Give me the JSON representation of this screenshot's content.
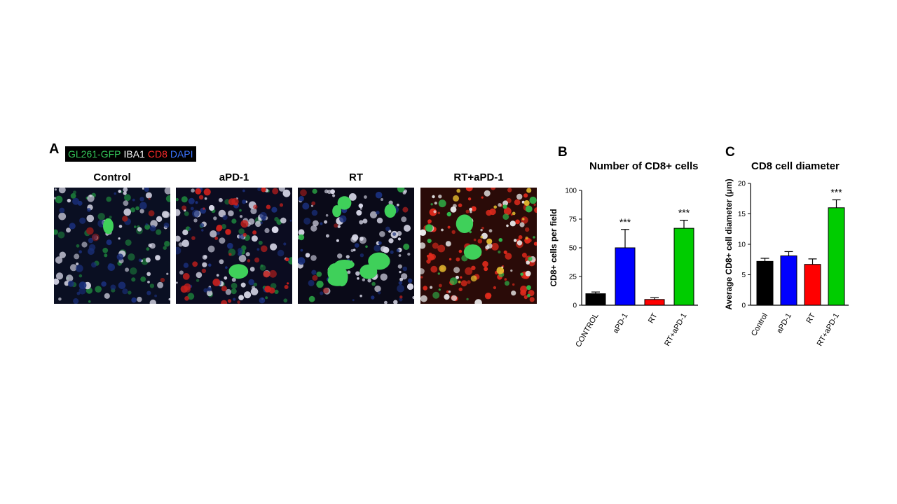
{
  "panel_a": {
    "letter": "A",
    "legend": [
      {
        "text": "GL261-GFP",
        "color": "#34c659"
      },
      {
        "text": "IBA1",
        "color": "#ffffff"
      },
      {
        "text": "CD8",
        "color": "#ff2a2a"
      },
      {
        "text": "DAPI",
        "color": "#3b74ff"
      }
    ],
    "images": [
      {
        "title": "Control"
      },
      {
        "title": "aPD-1"
      },
      {
        "title": "RT"
      },
      {
        "title": "RT+aPD-1"
      }
    ]
  },
  "chart_data": [
    {
      "panel": "B",
      "type": "bar",
      "title": "Number of CD8+ cells",
      "ylabel": "CD8+ cells per field",
      "xlabel": "",
      "categories": [
        "CONTROL",
        "aPD-1",
        "RT",
        "RT+aPD-1"
      ],
      "values": [
        10,
        50,
        5,
        67
      ],
      "errors": [
        1.5,
        16,
        1.5,
        7
      ],
      "colors": [
        "#000000",
        "#0000ff",
        "#ff0000",
        "#00cc00"
      ],
      "significance": [
        "",
        "***",
        "",
        "***"
      ],
      "ylim": [
        0,
        100
      ],
      "yticks": [
        0,
        25,
        50,
        75,
        100
      ],
      "grid": false
    },
    {
      "panel": "C",
      "type": "bar",
      "title": "CD8 cell diameter",
      "ylabel": "Average CD8+ cell diameter (μm)",
      "xlabel": "",
      "categories": [
        "Control",
        "aPD-1",
        "RT",
        "RT+aPD-1"
      ],
      "values": [
        7.2,
        8.1,
        6.7,
        16
      ],
      "errors": [
        0.5,
        0.7,
        0.9,
        1.3
      ],
      "colors": [
        "#000000",
        "#0000ff",
        "#ff0000",
        "#00cc00"
      ],
      "significance": [
        "",
        "",
        "",
        "***"
      ],
      "ylim": [
        0,
        20
      ],
      "yticks": [
        0,
        5,
        10,
        15,
        20
      ],
      "grid": false
    }
  ]
}
